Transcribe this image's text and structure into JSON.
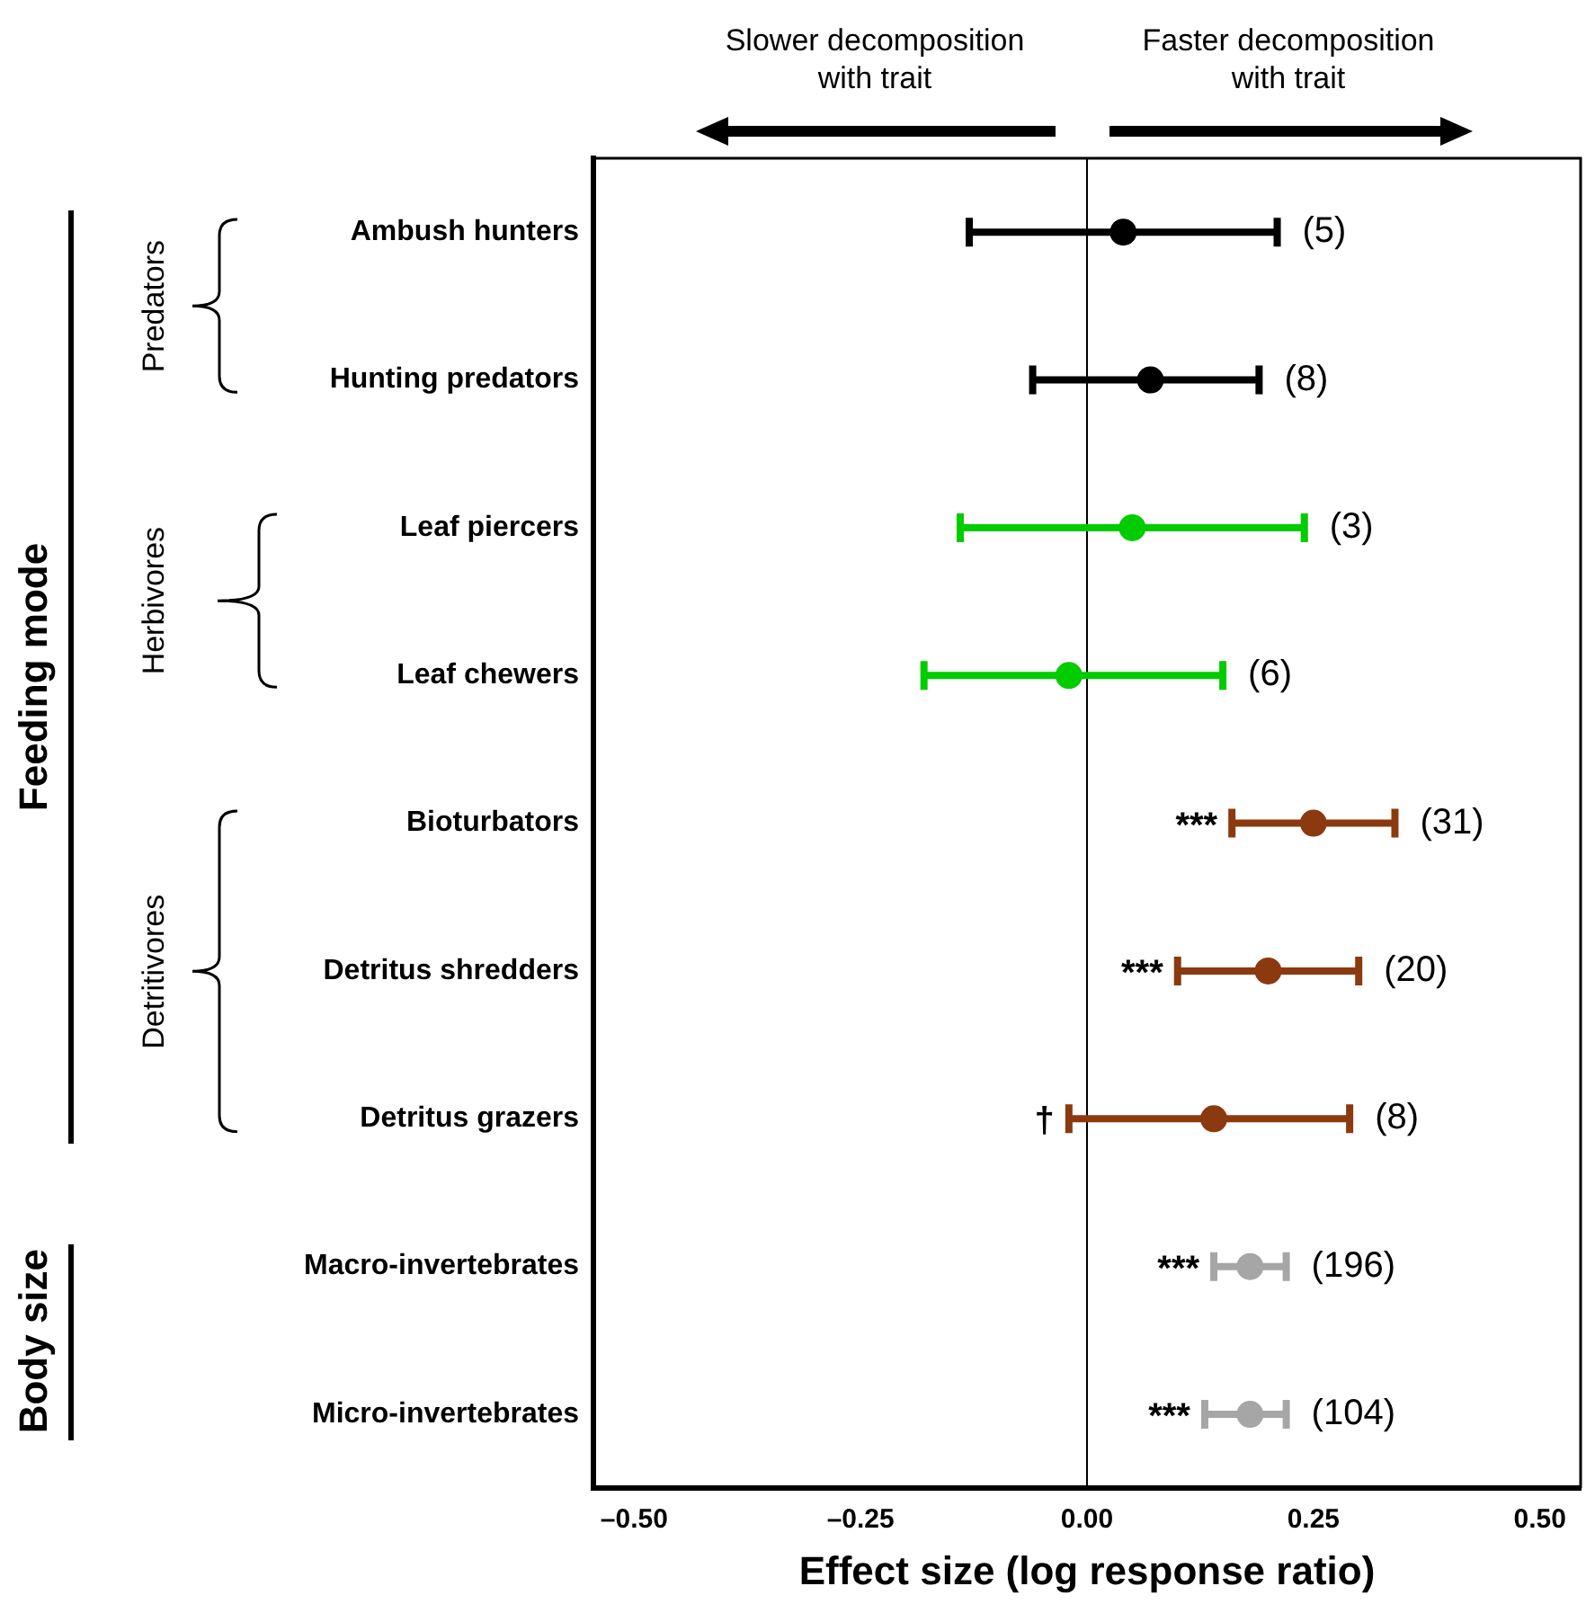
{
  "chart_data": {
    "type": "scatter",
    "orientation": "horizontal",
    "xlabel": "Effect size (log response ratio)",
    "categories": [
      "Ambush hunters",
      "Hunting predators",
      "Leaf piercers",
      "Leaf chewers",
      "Bioturbators",
      "Detritus shredders",
      "Detritus grazers",
      "Macro-invertebrates",
      "Micro-invertebrates"
    ],
    "values": [
      0.04,
      0.07,
      0.05,
      -0.02,
      0.25,
      0.2,
      0.14,
      0.18,
      0.18
    ],
    "errors": [
      [
        -0.13,
        0.21
      ],
      [
        -0.06,
        0.19
      ],
      [
        -0.14,
        0.24
      ],
      [
        -0.18,
        0.15
      ],
      [
        0.16,
        0.34
      ],
      [
        0.1,
        0.3
      ],
      [
        -0.02,
        0.29
      ],
      [
        0.14,
        0.22
      ],
      [
        0.13,
        0.22
      ]
    ],
    "colors": [
      "#000000",
      "#000000",
      "#00cc00",
      "#00cc00",
      "#8b3a0f",
      "#8b3a0f",
      "#8b3a0f",
      "#a6a6a6",
      "#a6a6a6"
    ],
    "marker": "circle",
    "grid": false,
    "legend": false,
    "xlim": [
      -0.545,
      0.545
    ],
    "xticks": [
      {
        "value": -0.5,
        "label": "–0.50"
      },
      {
        "value": -0.25,
        "label": "–0.25"
      },
      {
        "value": 0,
        "label": "0.00"
      },
      {
        "value": 0.25,
        "label": "0.25"
      },
      {
        "value": 0.5,
        "label": "0.50"
      }
    ],
    "ref_lines": [
      {
        "axis": "x",
        "value": 0,
        "color": "#000000"
      }
    ],
    "annotations": [
      "Slower decomposition with trait",
      "Faster decomposition with trait",
      "Predators",
      "Herbivores",
      "Detritivores",
      "Feeding mode",
      "Body size",
      {
        "text": "(5)",
        "x": 0.21,
        "y": "Ambush hunters"
      },
      {
        "text": "(8)",
        "x": 0.19,
        "y": "Hunting predators"
      },
      {
        "text": "(3)",
        "x": 0.24,
        "y": "Leaf piercers"
      },
      {
        "text": "(6)",
        "x": 0.15,
        "y": "Leaf chewers"
      },
      {
        "text": "(31)",
        "x": 0.34,
        "y": "Bioturbators"
      },
      {
        "text": "(20)",
        "x": 0.3,
        "y": "Detritus shredders"
      },
      {
        "text": "(8)",
        "x": 0.29,
        "y": "Detritus grazers"
      },
      {
        "text": "(196)",
        "x": 0.22,
        "y": "Macro-invertebrates"
      },
      {
        "text": "(104)",
        "x": 0.22,
        "y": "Micro-invertebrates"
      },
      {
        "text": "***",
        "x": 0.16,
        "y": "Bioturbators"
      },
      {
        "text": "***",
        "x": 0.1,
        "y": "Detritus shredders"
      },
      {
        "text": "†",
        "x": -0.02,
        "y": "Detritus grazers"
      },
      {
        "text": "***",
        "x": 0.14,
        "y": "Macro-invertebrates"
      },
      {
        "text": "***",
        "x": 0.13,
        "y": "Micro-invertebrates"
      }
    ]
  }
}
